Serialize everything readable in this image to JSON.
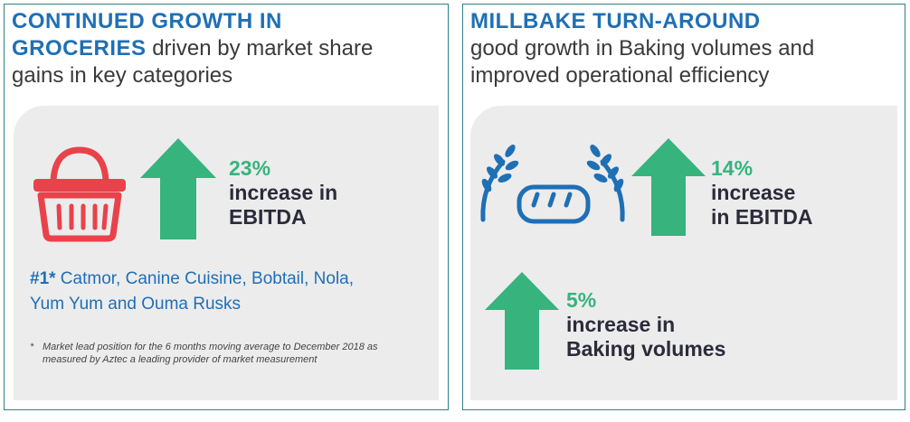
{
  "left": {
    "heading_highlight_1": "CONTINUED GROWTH IN",
    "heading_highlight_2": "GROCERIES",
    "heading_rest_1": " driven by market share",
    "heading_rest_2": "gains in key categories",
    "icon": "basket-icon",
    "stat_pct": "23%",
    "stat_line1": "increase in",
    "stat_line2": "EBITDA",
    "brands_rank": "#1*",
    "brands_line1": " Catmor, Canine Cuisine, Bobtail, Nola,",
    "brands_line2": "Yum Yum and Ouma Rusks",
    "footnote_star": "*",
    "footnote": "Market lead position for the 6 months moving average to December 2018 as measured by Aztec a leading provider of market measurement"
  },
  "right": {
    "heading_highlight": "MILLBAKE TURN-AROUND",
    "heading_rest_1": "good growth in Baking volumes and",
    "heading_rest_2": "improved operational efficiency",
    "icon": "bread-wheat-icon",
    "stat1_pct": "14%",
    "stat1_line1": "increase",
    "stat1_line2": "in EBITDA",
    "stat2_pct": "5%",
    "stat2_line1": "increase in",
    "stat2_line2": "Baking volumes"
  },
  "colors": {
    "accent_blue": "#1f6fb5",
    "green": "#37b37e",
    "red": "#e8424b",
    "border": "#2e7f86",
    "panel_grey": "#ececed"
  }
}
